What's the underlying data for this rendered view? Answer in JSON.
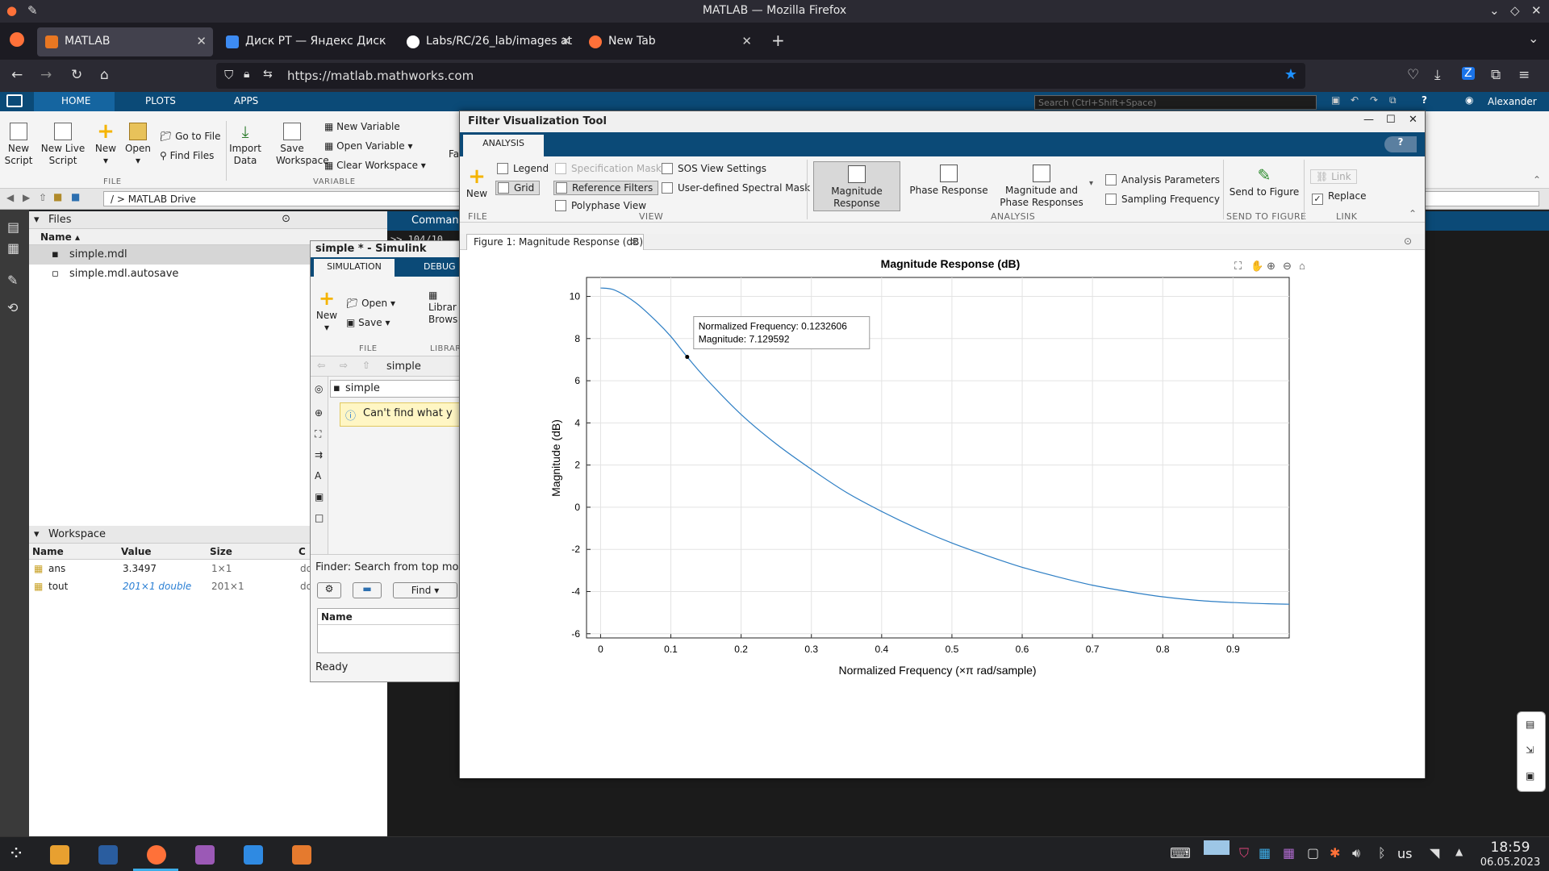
{
  "window": {
    "title": "MATLAB — Mozilla Firefox"
  },
  "browser": {
    "tabs": [
      {
        "label": "MATLAB",
        "active": true
      },
      {
        "label": "Диск РТ — Яндекс Диск"
      },
      {
        "label": "Labs/RC/26_lab/images at"
      },
      {
        "label": "New Tab"
      }
    ],
    "url": "https://matlab.mathworks.com"
  },
  "matlab": {
    "tabs": [
      "HOME",
      "PLOTS",
      "APPS"
    ],
    "search_placeholder": "Search (Ctrl+Shift+Space)",
    "user": "Alexander",
    "ribbon": {
      "new_script": "New Script",
      "new_live_script": "New Live Script",
      "new": "New",
      "open": "Open",
      "go_to_file": "Go to File",
      "find_files": "Find Files",
      "import_data": "Import Data",
      "save_workspace": "Save Workspace",
      "new_variable": "New Variable",
      "open_variable": "Open Variable",
      "clear_workspace": "Clear Workspace",
      "group_file": "FILE",
      "group_variable": "VARIABLE",
      "cut_label": "Fa"
    },
    "path": "/ > MATLAB Drive",
    "files": {
      "title": "Files",
      "col_name": "Name",
      "items": [
        "simple.mdl",
        "simple.mdl.autosave"
      ]
    },
    "workspace": {
      "title": "Workspace",
      "cols": [
        "Name",
        "Value",
        "Size",
        "C"
      ],
      "rows": [
        {
          "name": "ans",
          "value": "3.3497",
          "size": "1×1",
          "cls": "do"
        },
        {
          "name": "tout",
          "value": "201×1 double",
          "size": "201×1",
          "cls": "do"
        }
      ]
    },
    "command_window": {
      "title": "Comman",
      "text": ">> 104/10"
    }
  },
  "simulink": {
    "title": "simple * - Simulink",
    "tabs": [
      "SIMULATION",
      "DEBUG"
    ],
    "new": "New",
    "open": "Open",
    "save": "Save",
    "library": "Librar Brows",
    "group_file": "FILE",
    "group_library": "LIBRAR",
    "crumb": "simple",
    "model": "simple",
    "notice": "Can't find what y",
    "finder": "Finder: Search from top mo",
    "find_button": "Find",
    "col_name": "Name",
    "status": "Ready"
  },
  "fvtool": {
    "title": "Filter Visualization Tool",
    "tab": "ANALYSIS",
    "new": "New",
    "legend": "Legend",
    "grid": "Grid",
    "spec_mask": "Specification Mask",
    "reference_filters": "Reference Filters",
    "polyphase_view": "Polyphase View",
    "sos_view": "SOS View Settings",
    "user_mask": "User-defined Spectral Mask",
    "magnitude_response": "Magnitude Response",
    "phase_response": "Phase Response",
    "mag_phase": "Magnitude and Phase Responses",
    "analysis_params": "Analysis Parameters",
    "sampling_freq": "Sampling Frequency",
    "send_to_figure": "Send to Figure",
    "link": "Link",
    "replace": "Replace",
    "groups": [
      "FILE",
      "VIEW",
      "ANALYSIS",
      "SEND TO FIGURE",
      "LINK"
    ],
    "figure_tab": "Figure 1: Magnitude Response (dB)",
    "datatip": {
      "line1": "Normalized Frequency: 0.1232606",
      "line2": "Magnitude: 7.129592"
    }
  },
  "chart_data": {
    "type": "line",
    "title": "Magnitude Response (dB)",
    "xlabel": "Normalized  Frequency  (×π rad/sample)",
    "ylabel": "Magnitude (dB)",
    "xlim": [
      -0.02,
      0.98
    ],
    "ylim": [
      -6.2,
      10.9
    ],
    "xticks": [
      0,
      0.1,
      0.2,
      0.3,
      0.4,
      0.5,
      0.6,
      0.7,
      0.8,
      0.9
    ],
    "yticks": [
      -6,
      -4,
      -2,
      0,
      2,
      4,
      6,
      8,
      10
    ],
    "grid": true,
    "color": "#2d7ec4",
    "x": [
      0,
      0.02,
      0.05,
      0.08,
      0.1,
      0.1232606,
      0.15,
      0.2,
      0.25,
      0.3,
      0.35,
      0.4,
      0.45,
      0.5,
      0.55,
      0.6,
      0.65,
      0.7,
      0.75,
      0.8,
      0.85,
      0.9,
      0.95,
      0.98
    ],
    "y": [
      10.4,
      10.3,
      9.7,
      8.8,
      8.1,
      7.129592,
      6.1,
      4.4,
      3.0,
      1.8,
      0.7,
      -0.2,
      -1.0,
      -1.7,
      -2.3,
      -2.85,
      -3.3,
      -3.7,
      -4.0,
      -4.25,
      -4.42,
      -4.52,
      -4.58,
      -4.6
    ],
    "datatip": {
      "x": 0.1232606,
      "y": 7.129592
    }
  },
  "taskbar": {
    "time": "18:59",
    "date": "06.05.2023",
    "lang": "us"
  }
}
